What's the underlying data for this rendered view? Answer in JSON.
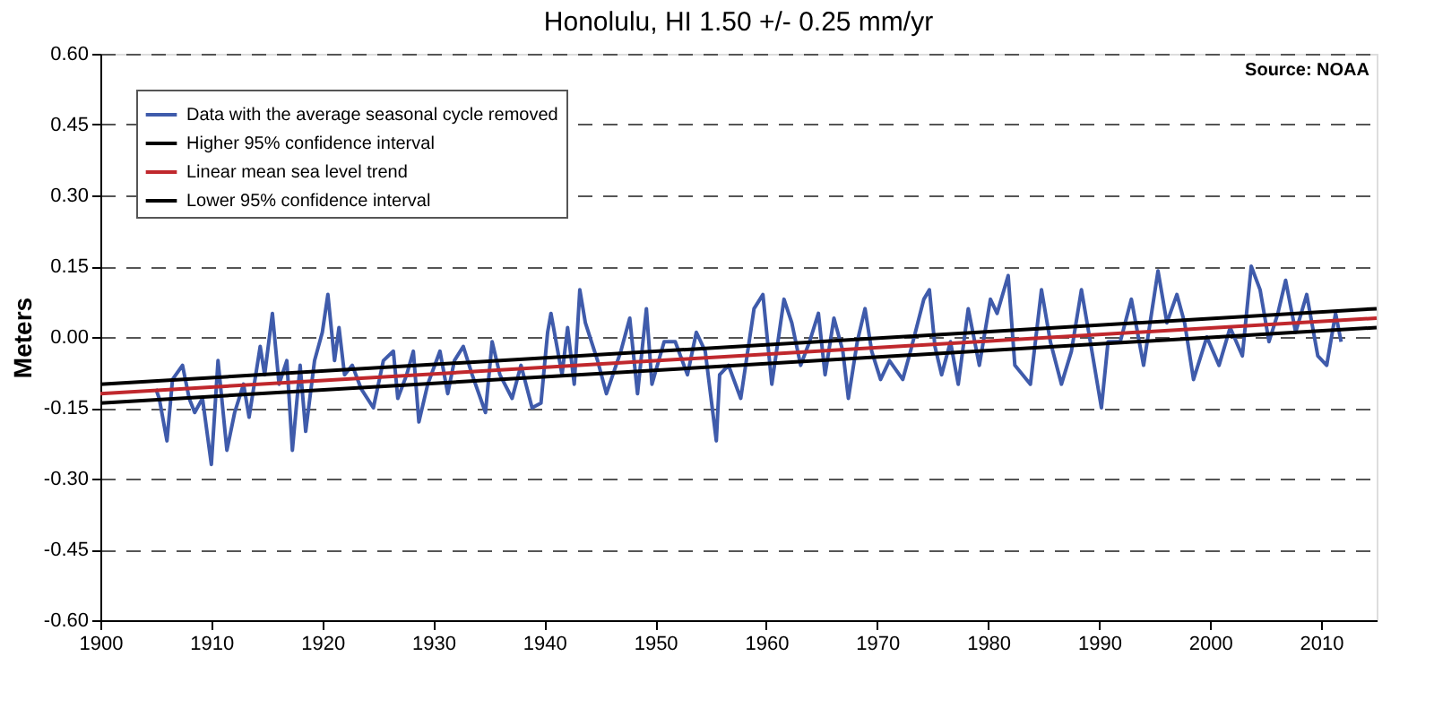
{
  "chart_data": {
    "type": "line",
    "title": "Honolulu, HI         1.50 +/- 0.25 mm/yr",
    "ylabel": "Meters",
    "annotations": [
      "Source: NOAA"
    ],
    "xlim": [
      1900,
      2015
    ],
    "xticks": [
      1900,
      1910,
      1920,
      1930,
      1940,
      1950,
      1960,
      1970,
      1980,
      1990,
      2000,
      2010
    ],
    "ylim": [
      -0.6,
      0.6
    ],
    "yticks": [
      {
        "value": -0.6,
        "label": "-0.60"
      },
      {
        "value": -0.45,
        "label": "-0.45"
      },
      {
        "value": -0.3,
        "label": "-0.30"
      },
      {
        "value": -0.15,
        "label": "-0.15"
      },
      {
        "value": 0,
        "label": "0.00"
      },
      {
        "value": 0.15,
        "label": "0.15"
      },
      {
        "value": 0.3,
        "label": "0.30"
      },
      {
        "value": 0.45,
        "label": "0.45"
      },
      {
        "value": 0.6,
        "label": "0.60"
      }
    ],
    "grid": "y",
    "legend": "top left",
    "line_style": "solid",
    "marker": "none",
    "series": [
      {
        "name": "Data with the average seasonal cycle removed",
        "color": "#3f5bab",
        "x": [
          1905,
          1905.3,
          1906,
          1906.5,
          1907.4,
          1908,
          1908.5,
          1909.2,
          1910,
          1910.6,
          1911.4,
          1912.1,
          1912.9,
          1913.4,
          1914.4,
          1914.8,
          1915.5,
          1916.1,
          1916.8,
          1917.3,
          1918,
          1918.5,
          1919.3,
          1920,
          1920.5,
          1921.1,
          1921.5,
          1922,
          1922.7,
          1923.5,
          1924.6,
          1925.5,
          1926.4,
          1926.8,
          1927.6,
          1928.2,
          1928.7,
          1929.5,
          1930.6,
          1931.3,
          1931.9,
          1932.7,
          1933.5,
          1934.7,
          1935.3,
          1936,
          1937.1,
          1937.9,
          1938.9,
          1939.7,
          1940.3,
          1940.6,
          1941.6,
          1942.1,
          1942.7,
          1943.2,
          1943.7,
          1944.8,
          1945.6,
          1946.9,
          1947.7,
          1948.4,
          1949.2,
          1949.7,
          1950.8,
          1951.8,
          1952.9,
          1953.7,
          1954.5,
          1955.5,
          1955.8,
          1956.6,
          1957.7,
          1958.9,
          1959.7,
          1960.5,
          1961.6,
          1962.3,
          1963.1,
          1963.9,
          1964.7,
          1965.3,
          1966.1,
          1966.9,
          1967.4,
          1968.2,
          1968.9,
          1969.5,
          1970.3,
          1971.1,
          1972.3,
          1973,
          1974.2,
          1974.7,
          1975.2,
          1975.8,
          1976.6,
          1977.3,
          1978.2,
          1979.2,
          1980.2,
          1980.8,
          1981.8,
          1982.4,
          1983.8,
          1984.8,
          1985.6,
          1986.6,
          1987.5,
          1988.4,
          1989.2,
          1990.2,
          1990.8,
          1991.9,
          1992.9,
          1994,
          1995.3,
          1996.1,
          1997,
          1997.7,
          1998.5,
          1999.7,
          2000.8,
          2001.8,
          2002.9,
          2003.7,
          2004.5,
          2005.3,
          2006.1,
          2006.8,
          2007.7,
          2008.7,
          2009.7,
          2010.5,
          2011.3,
          2011.8
        ],
        "values": [
          -0.11,
          -0.13,
          -0.22,
          -0.09,
          -0.06,
          -0.13,
          -0.16,
          -0.13,
          -0.27,
          -0.05,
          -0.24,
          -0.16,
          -0.1,
          -0.17,
          -0.02,
          -0.08,
          0.05,
          -0.1,
          -0.05,
          -0.24,
          -0.06,
          -0.2,
          -0.05,
          0.01,
          0.09,
          -0.05,
          0.02,
          -0.08,
          -0.06,
          -0.11,
          -0.15,
          -0.05,
          -0.03,
          -0.13,
          -0.08,
          -0.03,
          -0.18,
          -0.1,
          -0.03,
          -0.12,
          -0.05,
          -0.02,
          -0.08,
          -0.16,
          -0.01,
          -0.08,
          -0.13,
          -0.06,
          -0.15,
          -0.14,
          0.01,
          0.05,
          -0.08,
          0.02,
          -0.1,
          0.1,
          0.03,
          -0.05,
          -0.12,
          -0.03,
          0.04,
          -0.12,
          0.06,
          -0.1,
          -0.01,
          -0.01,
          -0.08,
          0.01,
          -0.03,
          -0.22,
          -0.08,
          -0.06,
          -0.13,
          0.06,
          0.09,
          -0.1,
          0.08,
          0.03,
          -0.06,
          -0.01,
          0.05,
          -0.08,
          0.04,
          -0.03,
          -0.13,
          -0.01,
          0.06,
          -0.03,
          -0.09,
          -0.05,
          -0.09,
          -0.03,
          0.08,
          0.1,
          -0.02,
          -0.08,
          -0.01,
          -0.1,
          0.06,
          -0.06,
          0.08,
          0.05,
          0.13,
          -0.06,
          -0.1,
          0.1,
          -0.01,
          -0.1,
          -0.03,
          0.1,
          -0.01,
          -0.15,
          -0.01,
          -0.01,
          0.08,
          -0.06,
          0.14,
          0.03,
          0.09,
          0.03,
          -0.09,
          0.0,
          -0.06,
          0.02,
          -0.04,
          0.15,
          0.1,
          -0.01,
          0.05,
          0.12,
          0.01,
          0.09,
          -0.04,
          -0.06,
          0.05,
          -0.01
        ]
      },
      {
        "name": "Higher 95% confidence interval",
        "color": "#000000",
        "x": [
          1900,
          2015
        ],
        "values": [
          -0.1,
          0.06
        ]
      },
      {
        "name": "Linear mean sea level trend",
        "color": "#c0282d",
        "x": [
          1900,
          2015
        ],
        "values": [
          -0.12,
          0.04
        ]
      },
      {
        "name": "Lower 95% confidence interval",
        "color": "#000000",
        "x": [
          1900,
          2015
        ],
        "values": [
          -0.14,
          0.02
        ]
      }
    ]
  }
}
